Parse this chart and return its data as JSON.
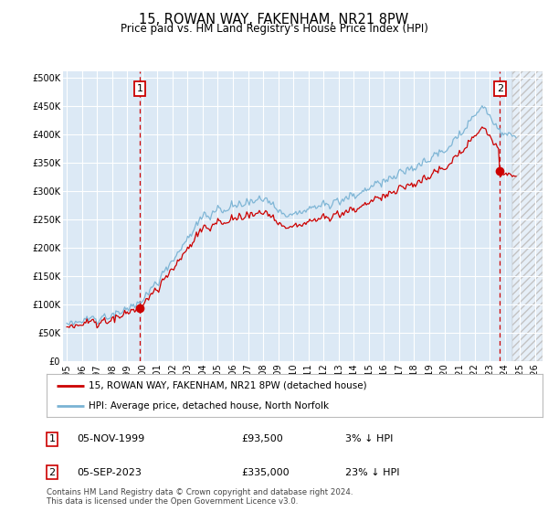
{
  "title": "15, ROWAN WAY, FAKENHAM, NR21 8PW",
  "subtitle": "Price paid vs. HM Land Registry's House Price Index (HPI)",
  "hpi_color": "#7ab3d4",
  "price_color": "#cc0000",
  "dashed_color": "#cc0000",
  "background_chart": "#dce9f5",
  "grid_color": "#ffffff",
  "purchases": [
    {
      "date_num": 1999.83,
      "price": 93500,
      "label": "1"
    },
    {
      "date_num": 2023.67,
      "price": 335000,
      "label": "2"
    }
  ],
  "legend_entries": [
    "15, ROWAN WAY, FAKENHAM, NR21 8PW (detached house)",
    "HPI: Average price, detached house, North Norfolk"
  ],
  "table_entries": [
    {
      "num": "1",
      "date": "05-NOV-1999",
      "price": "£93,500",
      "pct": "3% ↓ HPI"
    },
    {
      "num": "2",
      "date": "05-SEP-2023",
      "price": "£335,000",
      "pct": "23% ↓ HPI"
    }
  ],
  "footnote": "Contains HM Land Registry data © Crown copyright and database right 2024.\nThis data is licensed under the Open Government Licence v3.0.",
  "ylim": [
    0,
    510000
  ],
  "yticks": [
    0,
    50000,
    100000,
    150000,
    200000,
    250000,
    300000,
    350000,
    400000,
    450000,
    500000
  ],
  "xlim_start": 1994.75,
  "xlim_end": 2026.5,
  "future_start": 2024.5,
  "hpi_seed": 42,
  "price_seed": 123
}
